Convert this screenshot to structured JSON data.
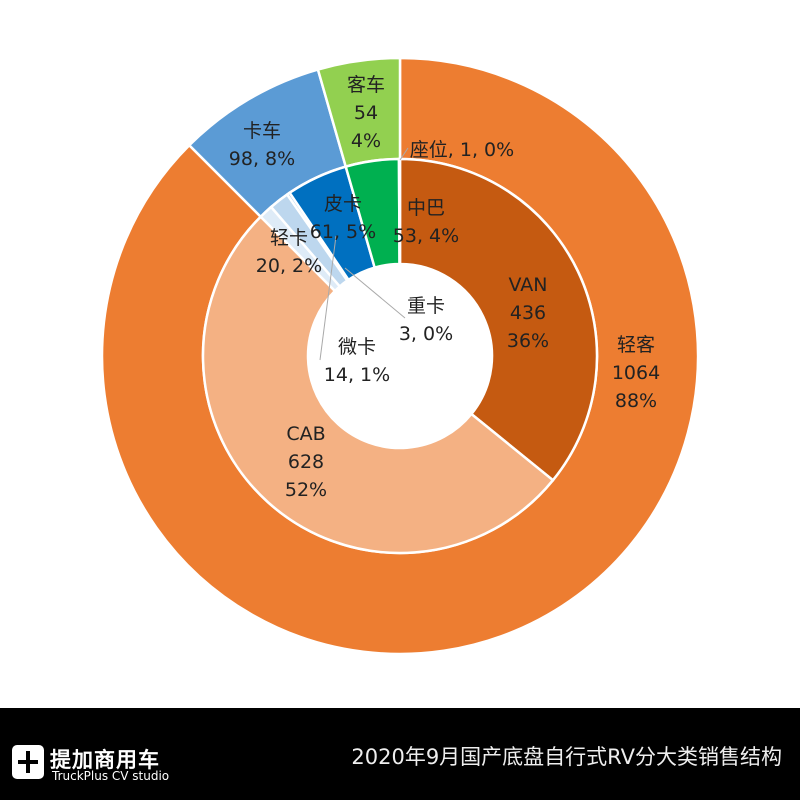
{
  "chart_data": {
    "type": "sunburst",
    "outer": [
      {
        "name": "轻客",
        "value": 1064,
        "pct": "88%",
        "color": "#ED7D31"
      },
      {
        "name": "卡车",
        "value": 98,
        "pct": "8%",
        "color": "#5B9BD5"
      },
      {
        "name": "客车",
        "value": 54,
        "pct": "4%",
        "color": "#92D050"
      }
    ],
    "inner": [
      {
        "name": "VAN",
        "value": 436,
        "pct": "36%",
        "parent": "轻客",
        "color": "#C55A11"
      },
      {
        "name": "CAB",
        "value": 628,
        "pct": "52%",
        "parent": "轻客",
        "color": "#F4B183"
      },
      {
        "name": "微卡",
        "value": 14,
        "pct": "1%",
        "parent": "卡车",
        "color": "#DEEBF7"
      },
      {
        "name": "轻卡",
        "value": 20,
        "pct": "2%",
        "parent": "卡车",
        "color": "#BDD7EE"
      },
      {
        "name": "重卡",
        "value": 3,
        "pct": "0%",
        "parent": "卡车",
        "color": "#9DC3E6"
      },
      {
        "name": "皮卡",
        "value": 61,
        "pct": "5%",
        "parent": "卡车",
        "color": "#0070C0"
      },
      {
        "name": "中巴",
        "value": 53,
        "pct": "4%",
        "parent": "客车",
        "color": "#00B050"
      },
      {
        "name": "座位",
        "value": 1,
        "pct": "0%",
        "parent": "客车",
        "color": "#A9D18E"
      }
    ]
  },
  "labels": {
    "qingke": [
      "轻客",
      "1064",
      "88%"
    ],
    "kache": [
      "卡车",
      "98, 8%"
    ],
    "keche": [
      "客车",
      "54",
      "4%"
    ],
    "van": [
      "VAN",
      "436",
      "36%"
    ],
    "cab": [
      "CAB",
      "628",
      "52%"
    ],
    "weika": [
      "微卡",
      "14, 1%"
    ],
    "qingka": [
      "轻卡",
      "20, 2%"
    ],
    "zhongka": [
      "重卡",
      "3, 0%"
    ],
    "pika": [
      "皮卡",
      "61, 5%"
    ],
    "zhongba": [
      "中巴",
      "53, 4%"
    ],
    "zuowei": "座位, 1, 0%"
  },
  "footer": {
    "logo_cn": "提加商用车",
    "logo_en": "TruckPlus CV studio",
    "title": "2020年9月国产底盘自行式RV分大类销售结构"
  }
}
